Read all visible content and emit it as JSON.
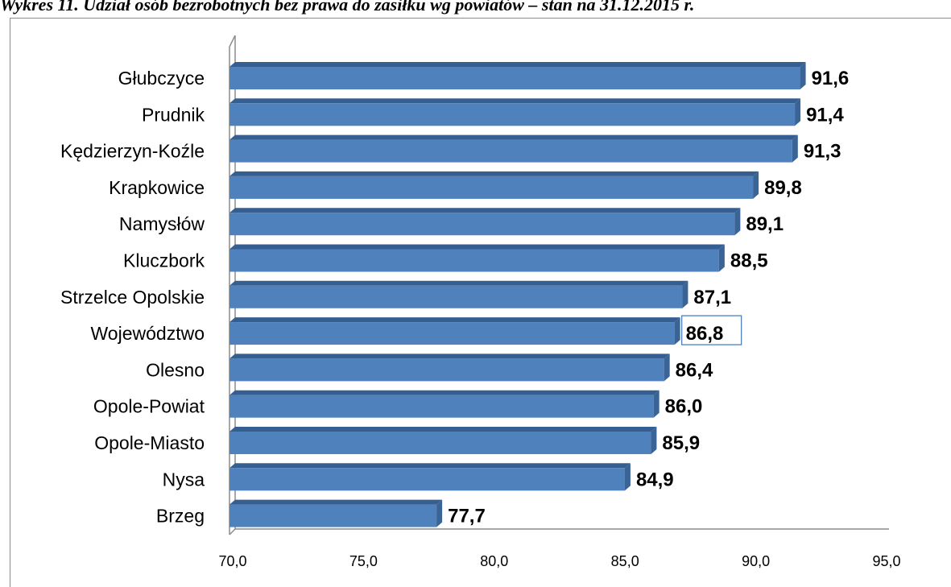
{
  "title": "Wykres 11. Udział osób bezrobotnych bez prawa do zasiłku wg powiatów – stan na 31.12.2015 r.",
  "chart_data": {
    "type": "bar",
    "orientation": "horizontal",
    "categories": [
      "Głubczyce",
      "Prudnik",
      "Kędzierzyn-Koźle",
      "Krapkowice",
      "Namysłów",
      "Kluczbork",
      "Strzelce Opolskie",
      "Województwo",
      "Olesno",
      "Opole-Powiat",
      "Opole-Miasto",
      "Nysa",
      "Brzeg"
    ],
    "values": [
      91.6,
      91.4,
      91.3,
      89.8,
      89.1,
      88.5,
      87.1,
      86.8,
      86.4,
      86.0,
      85.9,
      84.9,
      77.7
    ],
    "data_labels": [
      "91,6",
      "91,4",
      "91,3",
      "89,8",
      "89,1",
      "88,5",
      "87,1",
      "86,8",
      "86,4",
      "86,0",
      "85,9",
      "84,9",
      "77,7"
    ],
    "highlighted_label": "Województwo",
    "xlim": [
      70,
      95
    ],
    "xticks": [
      "70,0",
      "75,0",
      "80,0",
      "85,0",
      "90,0",
      "95,0"
    ],
    "grid": false,
    "bar_color": "#4f81bd",
    "bar_shade_color": "#3a6496",
    "bar_top_color": "#365f91",
    "highlight_border_color": "#4f81bd"
  }
}
